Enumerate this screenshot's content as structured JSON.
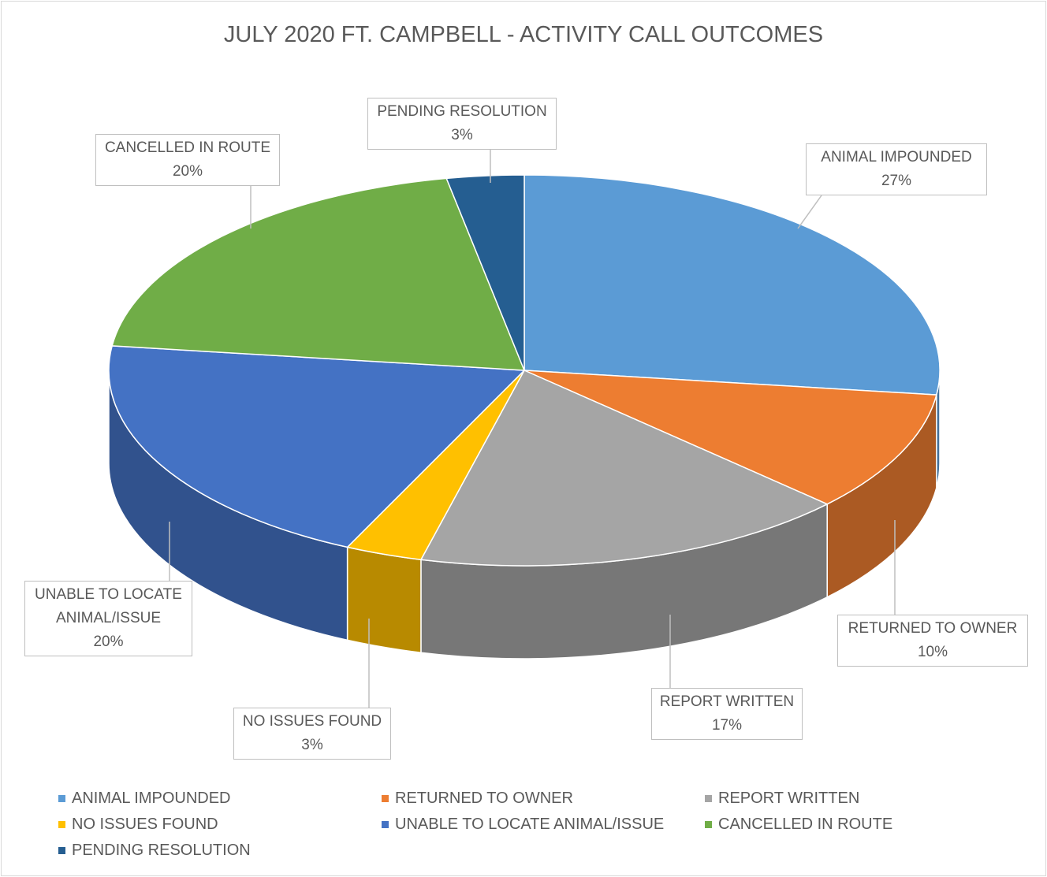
{
  "chart_data": {
    "type": "pie",
    "title": "JULY 2020 FT. CAMPBELL - ACTIVITY CALL OUTCOMES",
    "categories": [
      "ANIMAL IMPOUNDED",
      "RETURNED TO OWNER",
      "REPORT WRITTEN",
      "NO ISSUES FOUND",
      "UNABLE TO LOCATE ANIMAL/ISSUE",
      "CANCELLED IN ROUTE",
      "PENDING RESOLUTION"
    ],
    "values": [
      27,
      10,
      17,
      3,
      20,
      20,
      3
    ],
    "value_labels": [
      "27%",
      "10%",
      "17%",
      "3%",
      "20%",
      "20%",
      "3%"
    ],
    "colors": [
      "#5b9bd5",
      "#ed7d31",
      "#a5a5a5",
      "#ffc000",
      "#4472c4",
      "#70ad47",
      "#255e91"
    ],
    "legend": "bottom"
  }
}
